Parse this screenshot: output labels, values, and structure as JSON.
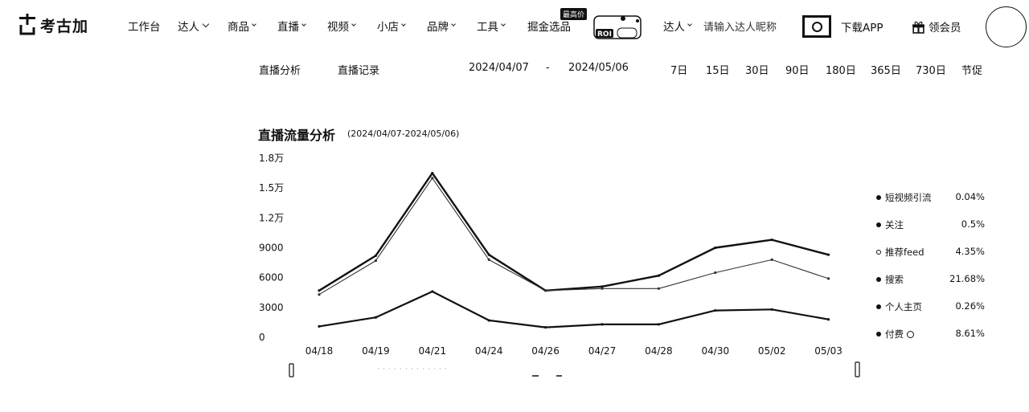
{
  "brand": {
    "name": "考古加"
  },
  "nav": [
    {
      "label": "工作台",
      "has_menu": false
    },
    {
      "label": "达人",
      "has_menu": true
    },
    {
      "label": "商品",
      "has_menu": true
    },
    {
      "label": "直播",
      "has_menu": true
    },
    {
      "label": "视频",
      "has_menu": true
    },
    {
      "label": "小店",
      "has_menu": true
    },
    {
      "label": "品牌",
      "has_menu": true
    },
    {
      "label": "工具",
      "has_menu": true
    },
    {
      "label": "掘金选品",
      "has_menu": false,
      "badge": "最高价"
    }
  ],
  "promo": {
    "tag": "ROI"
  },
  "search": {
    "scope": "达人",
    "placeholder": "请输入达人昵称"
  },
  "header_actions": {
    "download": "下载APP",
    "vip": "领会员"
  },
  "subnav": {
    "tabs": [
      "直播分析",
      "直播记录"
    ],
    "date_start": "2024/04/07",
    "date_sep": "-",
    "date_end": "2024/05/06",
    "quick_ranges": [
      "7日",
      "15日",
      "30日",
      "90日",
      "180日",
      "365日",
      "730日",
      "节促"
    ]
  },
  "chart": {
    "title": "直播流量分析",
    "range": "(2024/04/07-2024/05/06)"
  },
  "chart_data": {
    "type": "line",
    "x": [
      "04/18",
      "04/19",
      "04/21",
      "04/24",
      "04/26",
      "04/27",
      "04/28",
      "04/30",
      "05/02",
      "05/03"
    ],
    "y_ticks": [
      "1.8万",
      "1.5万",
      "1.2万",
      "9000",
      "6000",
      "3000",
      "0"
    ],
    "ylim": [
      0,
      18000
    ],
    "series": [
      {
        "values": [
          4700,
          8200,
          16500,
          8300,
          4700,
          5100,
          6200,
          9000,
          9800,
          8300
        ]
      },
      {
        "values": [
          4300,
          7700,
          16000,
          7800,
          4700,
          4900,
          4900,
          6500,
          7800,
          5900
        ]
      },
      {
        "values": [
          1100,
          2000,
          4600,
          1700,
          1000,
          1300,
          1300,
          2700,
          2800,
          1800
        ]
      }
    ],
    "legend": [
      {
        "name": "短视频引流",
        "value": "0.04%",
        "marker": "filled"
      },
      {
        "name": "关注",
        "value": "0.5%",
        "marker": "filled"
      },
      {
        "name": "推荐feed",
        "value": "4.35%",
        "marker": "hollow"
      },
      {
        "name": "搜索",
        "value": "21.68%",
        "marker": "filled"
      },
      {
        "name": "个人主页",
        "value": "0.26%",
        "marker": "filled"
      },
      {
        "name": "付费",
        "value": "8.61%",
        "marker": "filled",
        "icon": "clock-icon"
      }
    ],
    "legend_position": "right",
    "grid": false,
    "range_slider": true
  }
}
